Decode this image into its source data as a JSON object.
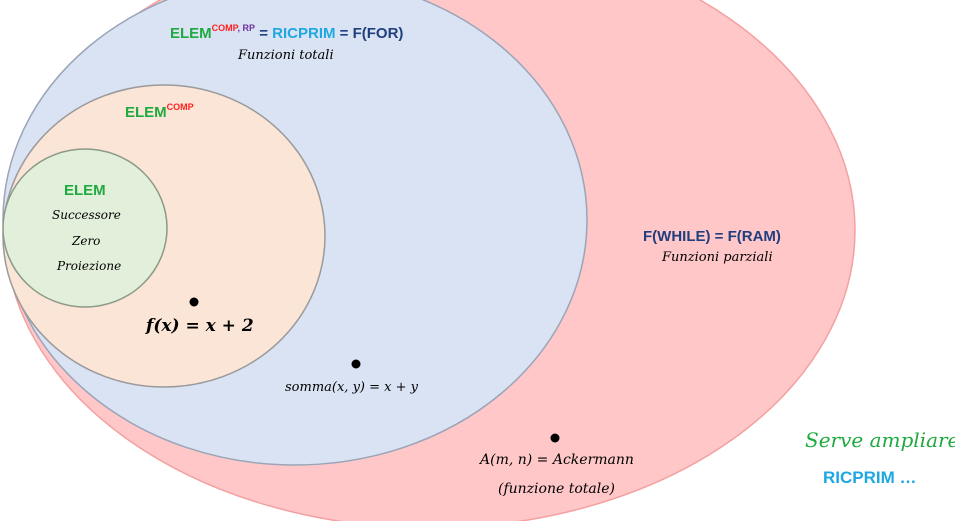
{
  "colors": {
    "red_fill": "#ffc7c8",
    "red_stroke": "#f4a0a0",
    "blue_fill": "#dae3f3",
    "blue_stroke": "#9aa5b8",
    "orange_fill": "#fbe5d6",
    "orange_stroke": "#9a9a9a",
    "green_fill": "#e2efda",
    "green_stroke": "#8a9a88",
    "green_text": "#1faa3f",
    "red_text": "#ff1f1f",
    "purple_text": "#7030a0",
    "cyan_text": "#1ea7e1",
    "navy_text": "#1f3f7f",
    "black": "#000000"
  },
  "sets": {
    "ricprim": {
      "elem": "ELEM",
      "sup_comp": "COMP",
      "sup_sep": ", ",
      "sup_rp": "RP",
      "eq1": " = ",
      "ricprim": "RICPRIM",
      "eq2": " = F(FOR)",
      "subtitle": "Funzioni totali"
    },
    "elemcomp": {
      "elem": "ELEM",
      "sup_comp": "COMP"
    },
    "elem": {
      "title": "ELEM",
      "items": [
        "Successore",
        "Zero",
        "Proiezione"
      ]
    },
    "fwhile": {
      "title": "F(WHILE) = F(RAM)",
      "subtitle": "Funzioni parziali"
    }
  },
  "points": {
    "fx": "f(x) = x + 2",
    "somma": "somma(x, y) = x + y",
    "ackermann": "A(m, n) = Ackermann",
    "ackermann_note": "(funzione totale)"
  },
  "note": {
    "line1": "Serve ampliare",
    "line2": "RICPRIM …"
  }
}
